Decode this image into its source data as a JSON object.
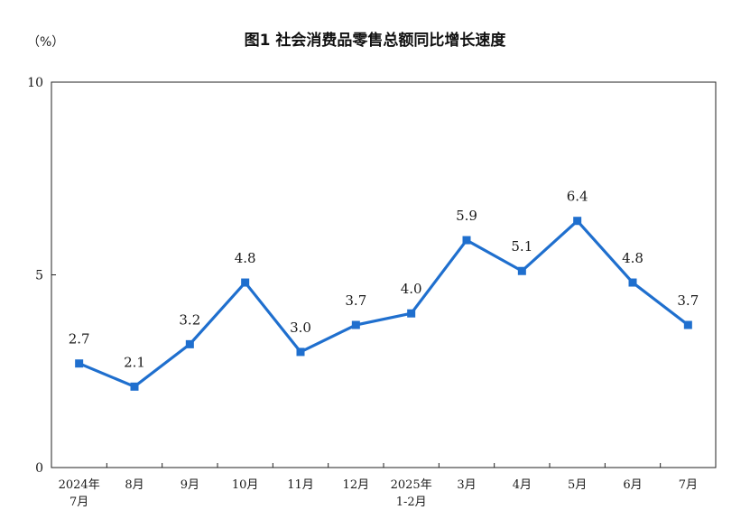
{
  "chart_data": {
    "type": "line",
    "title": "图1  社会消费品零售总额同比增长速度",
    "unit_label": "（%）",
    "xlabel": "",
    "ylabel": "",
    "categories": [
      {
        "line1": "2024年",
        "line2": "7月"
      },
      {
        "line1": "8月",
        "line2": ""
      },
      {
        "line1": "9月",
        "line2": ""
      },
      {
        "line1": "10月",
        "line2": ""
      },
      {
        "line1": "11月",
        "line2": ""
      },
      {
        "line1": "12月",
        "line2": ""
      },
      {
        "line1": "2025年",
        "line2": "1-2月"
      },
      {
        "line1": "3月",
        "line2": ""
      },
      {
        "line1": "4月",
        "line2": ""
      },
      {
        "line1": "5月",
        "line2": ""
      },
      {
        "line1": "6月",
        "line2": ""
      },
      {
        "line1": "7月",
        "line2": ""
      }
    ],
    "values": [
      2.7,
      2.1,
      3.2,
      4.8,
      3.0,
      3.7,
      4.0,
      5.9,
      5.1,
      6.4,
      4.8,
      3.7
    ],
    "data_labels": [
      "2.7",
      "2.1",
      "3.2",
      "4.8",
      "3.0",
      "3.7",
      "4.0",
      "5.9",
      "5.1",
      "6.4",
      "4.8",
      "3.7"
    ],
    "ylim": [
      0,
      10
    ],
    "yticks": [
      0,
      5,
      10
    ],
    "grid": false,
    "line_color": "#1f6fce"
  }
}
